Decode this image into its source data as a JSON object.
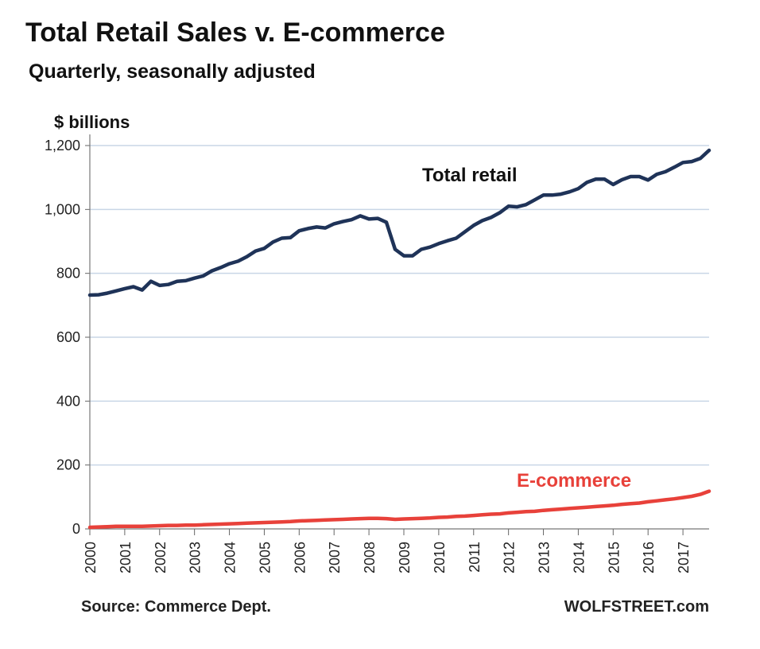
{
  "header": {
    "title": "Total Retail Sales v. E-commerce",
    "subtitle": "Quarterly, seasonally adjusted"
  },
  "footer": {
    "source": "Source: Commerce Dept.",
    "brand": "WOLFSTREET.com"
  },
  "colors": {
    "total_retail": "#1f3358",
    "ecommerce": "#e8413a",
    "grid": "#c9d6e6"
  },
  "chart_data": {
    "type": "line",
    "title": "Total Retail Sales v. E-commerce",
    "subtitle": "Quarterly, seasonally adjusted",
    "ylabel": "$ billions",
    "xlabel": "",
    "ylim": [
      0,
      1200
    ],
    "xlim": [
      2000,
      2017.75
    ],
    "yticks": [
      0,
      200,
      400,
      600,
      800,
      1000,
      1200
    ],
    "ytick_labels": [
      "0",
      "200",
      "400",
      "600",
      "800",
      "1,000",
      "1,200"
    ],
    "xticks": [
      2000,
      2001,
      2002,
      2003,
      2004,
      2005,
      2006,
      2007,
      2008,
      2009,
      2010,
      2011,
      2012,
      2013,
      2014,
      2015,
      2016,
      2017
    ],
    "xtick_labels": [
      "2000",
      "2001",
      "2002",
      "2003",
      "2004",
      "2005",
      "2006",
      "2007",
      "2008",
      "2009",
      "2010",
      "2011",
      "2012",
      "2013",
      "2014",
      "2015",
      "2016",
      "2017"
    ],
    "grid": true,
    "series": [
      {
        "name": "Total retail",
        "label": "Total retail",
        "x": [
          2000,
          2000.25,
          2000.5,
          2000.75,
          2001,
          2001.25,
          2001.5,
          2001.75,
          2002,
          2002.25,
          2002.5,
          2002.75,
          2003,
          2003.25,
          2003.5,
          2003.75,
          2004,
          2004.25,
          2004.5,
          2004.75,
          2005,
          2005.25,
          2005.5,
          2005.75,
          2006,
          2006.25,
          2006.5,
          2006.75,
          2007,
          2007.25,
          2007.5,
          2007.75,
          2008,
          2008.25,
          2008.5,
          2008.75,
          2009,
          2009.25,
          2009.5,
          2009.75,
          2010,
          2010.25,
          2010.5,
          2010.75,
          2011,
          2011.25,
          2011.5,
          2011.75,
          2012,
          2012.25,
          2012.5,
          2012.75,
          2013,
          2013.25,
          2013.5,
          2013.75,
          2014,
          2014.25,
          2014.5,
          2014.75,
          2015,
          2015.25,
          2015.5,
          2015.75,
          2016,
          2016.25,
          2016.5,
          2016.75,
          2017,
          2017.25,
          2017.5,
          2017.75
        ],
        "values": [
          732,
          733,
          738,
          745,
          752,
          758,
          748,
          775,
          762,
          765,
          775,
          777,
          785,
          792,
          808,
          818,
          830,
          838,
          852,
          870,
          878,
          898,
          910,
          912,
          933,
          940,
          945,
          942,
          955,
          962,
          968,
          980,
          970,
          972,
          960,
          875,
          855,
          855,
          875,
          882,
          893,
          902,
          910,
          930,
          950,
          965,
          975,
          990,
          1010,
          1008,
          1015,
          1030,
          1045,
          1045,
          1048,
          1055,
          1065,
          1085,
          1095,
          1095,
          1078,
          1093,
          1103,
          1103,
          1092,
          1110,
          1118,
          1132,
          1147,
          1150,
          1160,
          1185
        ]
      },
      {
        "name": "E-commerce",
        "label": "E-commerce",
        "x": [
          2000,
          2000.25,
          2000.5,
          2000.75,
          2001,
          2001.25,
          2001.5,
          2001.75,
          2002,
          2002.25,
          2002.5,
          2002.75,
          2003,
          2003.25,
          2003.5,
          2003.75,
          2004,
          2004.25,
          2004.5,
          2004.75,
          2005,
          2005.25,
          2005.5,
          2005.75,
          2006,
          2006.25,
          2006.5,
          2006.75,
          2007,
          2007.25,
          2007.5,
          2007.75,
          2008,
          2008.25,
          2008.5,
          2008.75,
          2009,
          2009.25,
          2009.5,
          2009.75,
          2010,
          2010.25,
          2010.5,
          2010.75,
          2011,
          2011.25,
          2011.5,
          2011.75,
          2012,
          2012.25,
          2012.5,
          2012.75,
          2013,
          2013.25,
          2013.5,
          2013.75,
          2014,
          2014.25,
          2014.5,
          2014.75,
          2015,
          2015.25,
          2015.5,
          2015.75,
          2016,
          2016.25,
          2016.5,
          2016.75,
          2017,
          2017.25,
          2017.5,
          2017.75
        ],
        "values": [
          5,
          6,
          7,
          8,
          8,
          8,
          8,
          9,
          10,
          11,
          11,
          12,
          12,
          13,
          14,
          15,
          16,
          17,
          18,
          19,
          20,
          21,
          22,
          23,
          25,
          26,
          27,
          28,
          29,
          30,
          31,
          32,
          33,
          33,
          32,
          30,
          31,
          32,
          33,
          34,
          36,
          37,
          39,
          40,
          42,
          44,
          46,
          47,
          50,
          52,
          54,
          55,
          58,
          60,
          62,
          64,
          66,
          68,
          70,
          72,
          74,
          77,
          79,
          81,
          85,
          88,
          91,
          94,
          98,
          102,
          108,
          118
        ]
      }
    ]
  }
}
